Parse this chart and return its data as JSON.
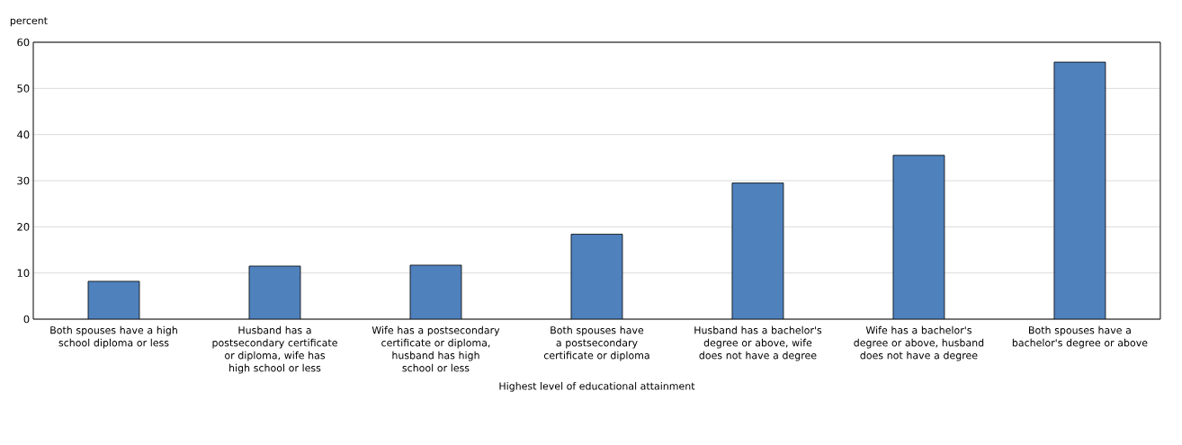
{
  "chart_data": {
    "type": "bar",
    "categories": [
      "Both spouses have a high school diploma or less",
      "Husband has a postsecondary certificate or diploma, wife has high school or less",
      "Wife has a postsecondary certificate or diploma, husband has high school or less",
      "Both spouses have a postsecondary certificate or diploma",
      "Husband has a bachelor's degree or above, wife does not have a degree",
      "Wife has a bachelor's degree or above, husband does not have a degree",
      "Both spouses have a bachelor's degree or above"
    ],
    "values": [
      8.2,
      11.5,
      11.7,
      18.4,
      29.5,
      35.5,
      55.7
    ],
    "color": "#4f81bd",
    "ylabel": "percent",
    "xlabel": "Highest level of educational attainment",
    "ylim": [
      0,
      60
    ],
    "yticks": [
      0,
      10,
      20,
      30,
      40,
      50,
      60
    ],
    "grid": "y"
  }
}
